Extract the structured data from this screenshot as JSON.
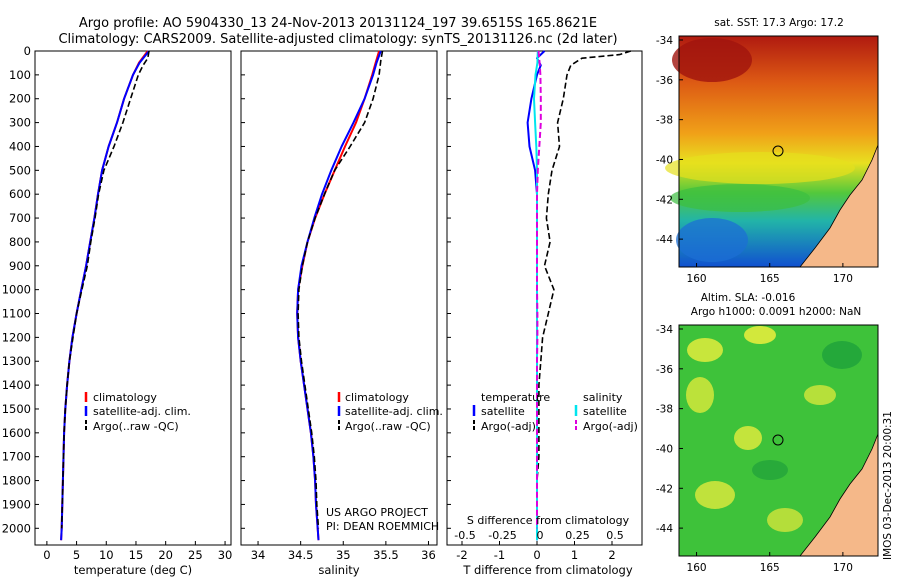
{
  "title": {
    "line1": "Argo profile: AO 5904330_13 24-Nov-2013 20131124_197 39.6515S 165.8621E",
    "line2": "Climatology: CARS2009. Satellite-adjusted climatology: synTS_20131126.nc (2d later)"
  },
  "colors": {
    "climatology": "#ff0000",
    "satellite": "#0000ff",
    "argo": "#000000",
    "satellite_s": "#00e5ee",
    "argo_s": "#dd00dd",
    "land": "#f5b889"
  },
  "depth_axis": {
    "ticks": [
      "0",
      "100",
      "200",
      "300",
      "400",
      "500",
      "600",
      "700",
      "800",
      "900",
      "1000",
      "1100",
      "1200",
      "1300",
      "1400",
      "1500",
      "1600",
      "1700",
      "1800",
      "1900",
      "2000"
    ]
  },
  "temperature_panel": {
    "xlabel": "temperature (deg C)",
    "xticks": [
      "0",
      "5",
      "10",
      "15",
      "20",
      "25",
      "30"
    ],
    "legend": [
      "climatology",
      "satellite-adj. clim.",
      "Argo(..raw -QC)"
    ]
  },
  "salinity_panel": {
    "xlabel": "salinity",
    "xticks": [
      "34",
      "34.5",
      "35",
      "35.5",
      "36"
    ],
    "legend": [
      "climatology",
      "satellite-adj. clim.",
      "Argo(..raw -QC)"
    ],
    "credit_line1": "US ARGO PROJECT",
    "credit_line2": "PI: DEAN ROEMMICH"
  },
  "difference_panel": {
    "top_xlabel": "S difference from climatology",
    "top_xticks": [
      "-0.5",
      "-0.25",
      "0",
      "0.25",
      "0.5"
    ],
    "xlabel": "T difference from climatology",
    "xticks": [
      "-2",
      "-1",
      "0",
      "1",
      "2"
    ],
    "legend_t_title": "temperature",
    "legend_s_title": "salinity",
    "legend_t": [
      "satellite",
      "Argo(-adj)"
    ],
    "legend_s": [
      "satellite",
      "Argo(-adj)"
    ]
  },
  "sst_map": {
    "title": "sat. SST: 17.3 Argo: 17.2",
    "yticks": [
      "-34",
      "-36",
      "-38",
      "-40",
      "-42",
      "-44"
    ],
    "xticks": [
      "160",
      "165",
      "170"
    ]
  },
  "sla_map": {
    "title_line1": "Altim. SLA: -0.016",
    "title_line2": "Argo h1000: 0.0091 h2000: NaN",
    "yticks": [
      "-34",
      "-36",
      "-38",
      "-40",
      "-42",
      "-44"
    ],
    "xticks": [
      "160",
      "165",
      "170"
    ]
  },
  "stamp": "IMOS 03-Dec-2013 20:00:31",
  "chart_data": [
    {
      "type": "line",
      "name": "temperature profile",
      "xlabel": "temperature (deg C)",
      "ylabel": "",
      "xlim": [
        -2,
        31
      ],
      "ylim": [
        2070,
        0
      ],
      "series": [
        {
          "name": "climatology",
          "depth": [
            0,
            50,
            100,
            200,
            300,
            400,
            500,
            600,
            700,
            800,
            900,
            1000,
            1100,
            1200,
            1300,
            1400,
            1500,
            1600,
            1700,
            1800,
            1900,
            2000,
            2050
          ],
          "values": [
            17.0,
            15.5,
            14.5,
            13.0,
            11.8,
            10.4,
            9.3,
            8.6,
            8.0,
            7.3,
            6.6,
            5.8,
            5.0,
            4.3,
            3.8,
            3.4,
            3.1,
            2.9,
            2.8,
            2.7,
            2.6,
            2.5,
            2.4
          ]
        },
        {
          "name": "satellite-adj. clim.",
          "depth": [
            0,
            50,
            100,
            200,
            300,
            400,
            500,
            600,
            700,
            800,
            900,
            1000,
            1100,
            1200,
            1300,
            1400,
            1500,
            1600,
            1700,
            1800,
            1900,
            2000,
            2050
          ],
          "values": [
            17.2,
            15.6,
            14.5,
            13.0,
            11.8,
            10.4,
            9.3,
            8.6,
            8.0,
            7.3,
            6.6,
            5.8,
            5.0,
            4.3,
            3.8,
            3.4,
            3.1,
            2.9,
            2.8,
            2.7,
            2.6,
            2.5,
            2.4
          ]
        },
        {
          "name": "Argo(..raw -QC)",
          "depth": [
            0,
            30,
            60,
            100,
            200,
            300,
            400,
            500,
            600,
            700,
            800,
            900,
            1000,
            1100,
            1200,
            1300,
            1400,
            1500,
            1600,
            1700,
            1800,
            1900,
            2000
          ],
          "values": [
            17.2,
            17.0,
            16.2,
            15.4,
            14.1,
            12.8,
            11.3,
            9.6,
            8.7,
            8.1,
            7.4,
            6.8,
            5.9,
            5.0,
            4.4,
            3.8,
            3.4,
            3.1,
            2.9,
            2.8,
            2.7,
            2.6,
            2.5
          ]
        }
      ]
    },
    {
      "type": "line",
      "name": "salinity profile",
      "xlabel": "salinity",
      "ylabel": "",
      "xlim": [
        33.8,
        36.1
      ],
      "ylim": [
        2070,
        0
      ],
      "series": [
        {
          "name": "climatology",
          "depth": [
            0,
            50,
            100,
            200,
            300,
            400,
            500,
            600,
            700,
            800,
            900,
            1000,
            1100,
            1200,
            1300,
            1400,
            1500,
            1600,
            1700,
            1800,
            1900,
            2000,
            2050
          ],
          "values": [
            35.42,
            35.38,
            35.34,
            35.25,
            35.15,
            35.02,
            34.9,
            34.78,
            34.67,
            34.58,
            34.52,
            34.47,
            34.46,
            34.47,
            34.5,
            34.54,
            34.58,
            34.62,
            34.65,
            34.67,
            34.68,
            34.7,
            34.71
          ]
        },
        {
          "name": "satellite-adj. clim.",
          "depth": [
            0,
            50,
            100,
            200,
            300,
            400,
            500,
            600,
            700,
            800,
            900,
            1000,
            1100,
            1200,
            1300,
            1400,
            1500,
            1600,
            1700,
            1800,
            1900,
            2000,
            2050
          ],
          "values": [
            35.44,
            35.39,
            35.35,
            35.25,
            35.12,
            34.98,
            34.86,
            34.75,
            34.66,
            34.58,
            34.51,
            34.47,
            34.46,
            34.47,
            34.5,
            34.54,
            34.58,
            34.62,
            34.65,
            34.67,
            34.68,
            34.7,
            34.71
          ]
        },
        {
          "name": "Argo(..raw -QC)",
          "depth": [
            0,
            40,
            100,
            200,
            300,
            400,
            500,
            600,
            700,
            800,
            900,
            1000,
            1100,
            1200,
            1300,
            1400,
            1500,
            1600,
            1700,
            1800,
            1900,
            2000
          ],
          "values": [
            35.46,
            35.44,
            35.42,
            35.35,
            35.25,
            35.08,
            34.9,
            34.78,
            34.67,
            34.58,
            34.52,
            34.48,
            34.47,
            34.48,
            34.51,
            34.55,
            34.59,
            34.63,
            34.66,
            34.68,
            34.69,
            34.71
          ]
        }
      ]
    },
    {
      "type": "line",
      "name": "difference from climatology",
      "xlabel": "T difference from climatology",
      "top_xlabel": "S difference from climatology",
      "xlim": [
        -2.4,
        2.8
      ],
      "ylim": [
        2070,
        0
      ],
      "series": [
        {
          "name": "temperature satellite",
          "depth": [
            0,
            30,
            60,
            100,
            200,
            300,
            400,
            500,
            600,
            700,
            800,
            900,
            1000,
            1100,
            1200,
            1300,
            1400,
            1500,
            1600,
            1700,
            1800,
            1900,
            2000,
            2050
          ],
          "values": [
            0.2,
            0.0,
            0.1,
            0.0,
            -0.15,
            -0.25,
            -0.2,
            -0.05,
            0.0,
            0.0,
            0.0,
            0.0,
            0.0,
            0.0,
            0.0,
            0.0,
            0.0,
            0.0,
            0.0,
            0.0,
            0.0,
            0.0,
            0.0,
            0.0
          ]
        },
        {
          "name": "temperature Argo(-adj)",
          "depth": [
            0,
            15,
            30,
            60,
            100,
            200,
            300,
            400,
            500,
            600,
            700,
            800,
            900,
            1000,
            1100,
            1200,
            1300,
            1400,
            1500,
            1600,
            1700,
            1800,
            1900,
            2000
          ],
          "values": [
            2.5,
            2.2,
            1.2,
            0.9,
            0.8,
            0.7,
            0.55,
            0.6,
            0.4,
            0.3,
            0.25,
            0.35,
            0.2,
            0.45,
            0.3,
            0.15,
            0.1,
            0.05,
            0.05,
            0.05,
            0.05,
            0.0,
            0.0,
            0.0
          ]
        },
        {
          "name": "salinity satellite",
          "depth": [
            0,
            50,
            100,
            200,
            300,
            400,
            500,
            600,
            700,
            800,
            900,
            1000,
            1100,
            1200,
            1300,
            1400,
            1500,
            1600,
            1700,
            1800,
            1900,
            2000,
            2050
          ],
          "values": [
            0.02,
            0.01,
            -0.04,
            -0.08,
            -0.05,
            -0.02,
            0.0,
            0.0,
            0.0,
            0.0,
            0.0,
            0.0,
            0.0,
            0.0,
            0.0,
            0.0,
            0.0,
            0.0,
            0.0,
            0.0,
            0.0,
            0.0,
            0.0
          ]
        },
        {
          "name": "salinity Argo(-adj)",
          "depth": [
            0,
            50,
            100,
            200,
            300,
            400,
            500,
            600,
            700,
            800,
            900,
            1000,
            1100,
            1200,
            1300,
            1400,
            1500,
            1600,
            1700,
            1800,
            1900,
            2000
          ],
          "values": [
            0.04,
            0.07,
            0.09,
            0.1,
            0.1,
            0.06,
            0.02,
            0.0,
            0.0,
            0.0,
            0.0,
            0.0,
            0.01,
            0.01,
            0.0,
            0.0,
            0.0,
            0.0,
            0.0,
            0.0,
            0.0,
            0.0
          ]
        }
      ]
    }
  ]
}
